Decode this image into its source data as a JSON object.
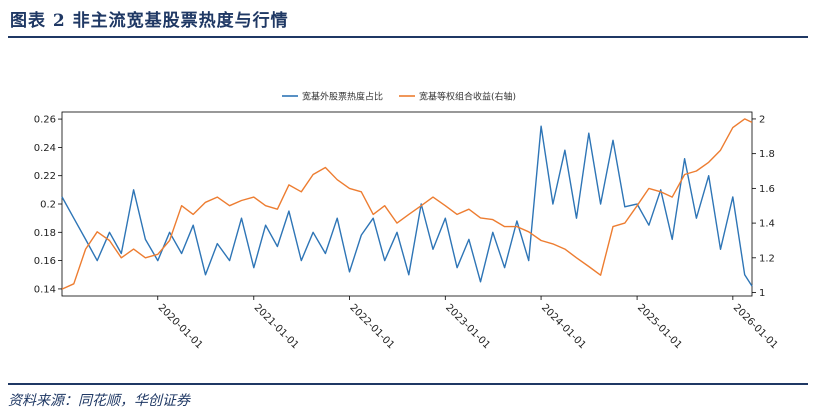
{
  "header": {
    "title": "图表 2   非主流宽基股票热度与行情"
  },
  "footer": {
    "source": "资料来源：同花顺，华创证券"
  },
  "chart_data": {
    "type": "line",
    "title": "",
    "legend_position": "top-center",
    "grid": false,
    "x_ticks": [
      "2020-01-01",
      "2021-01-01",
      "2022-01-01",
      "2023-01-01",
      "2024-01-01",
      "2025-01-01",
      "2026-01-01"
    ],
    "xlim": [
      "2019-01-01",
      "2026-03-15"
    ],
    "y_left": {
      "ticks": [
        "0.14",
        "0.16",
        "0.18",
        "0.2",
        "0.22",
        "0.24",
        "0.26"
      ],
      "ylim": [
        0.135,
        0.265
      ]
    },
    "y_right": {
      "ticks": [
        "1",
        "1.2",
        "1.4",
        "1.6",
        "1.8",
        "2"
      ],
      "ylim": [
        0.98,
        2.04
      ]
    },
    "series": [
      {
        "name": "宽基外股票热度占比",
        "axis": "left",
        "color": "#2e75b6",
        "x": [
          "2019-01-01",
          "2019-02-15",
          "2019-04-01",
          "2019-05-15",
          "2019-07-01",
          "2019-08-15",
          "2019-10-01",
          "2019-11-15",
          "2020-01-01",
          "2020-02-15",
          "2020-04-01",
          "2020-05-15",
          "2020-07-01",
          "2020-08-15",
          "2020-10-01",
          "2020-11-15",
          "2021-01-01",
          "2021-02-15",
          "2021-04-01",
          "2021-05-15",
          "2021-07-01",
          "2021-08-15",
          "2021-10-01",
          "2021-11-15",
          "2022-01-01",
          "2022-02-15",
          "2022-04-01",
          "2022-05-15",
          "2022-07-01",
          "2022-08-15",
          "2022-10-01",
          "2022-11-15",
          "2023-01-01",
          "2023-02-15",
          "2023-04-01",
          "2023-05-15",
          "2023-07-01",
          "2023-08-15",
          "2023-10-01",
          "2023-11-15",
          "2024-01-01",
          "2024-02-15",
          "2024-04-01",
          "2024-05-15",
          "2024-07-01",
          "2024-08-15",
          "2024-10-01",
          "2024-11-15",
          "2025-01-01",
          "2025-02-15",
          "2025-04-01",
          "2025-05-15",
          "2025-07-01",
          "2025-08-15",
          "2025-10-01",
          "2025-11-15",
          "2026-01-01",
          "2026-02-15",
          "2026-03-15"
        ],
        "values": [
          0.205,
          0.19,
          0.175,
          0.16,
          0.18,
          0.165,
          0.21,
          0.175,
          0.16,
          0.18,
          0.165,
          0.185,
          0.15,
          0.172,
          0.16,
          0.19,
          0.155,
          0.185,
          0.17,
          0.195,
          0.16,
          0.18,
          0.165,
          0.19,
          0.152,
          0.178,
          0.19,
          0.16,
          0.18,
          0.15,
          0.2,
          0.168,
          0.19,
          0.155,
          0.175,
          0.145,
          0.18,
          0.155,
          0.188,
          0.16,
          0.255,
          0.2,
          0.238,
          0.19,
          0.25,
          0.2,
          0.245,
          0.198,
          0.2,
          0.185,
          0.21,
          0.175,
          0.232,
          0.19,
          0.22,
          0.168,
          0.205,
          0.15,
          0.142
        ]
      },
      {
        "name": "宽基等权组合收益(右轴)",
        "axis": "right",
        "color": "#ed7d31",
        "x": [
          "2019-01-01",
          "2019-02-15",
          "2019-04-01",
          "2019-05-15",
          "2019-07-01",
          "2019-08-15",
          "2019-10-01",
          "2019-11-15",
          "2020-01-01",
          "2020-02-15",
          "2020-04-01",
          "2020-05-15",
          "2020-07-01",
          "2020-08-15",
          "2020-10-01",
          "2020-11-15",
          "2021-01-01",
          "2021-02-15",
          "2021-04-01",
          "2021-05-15",
          "2021-07-01",
          "2021-08-15",
          "2021-10-01",
          "2021-11-15",
          "2022-01-01",
          "2022-02-15",
          "2022-04-01",
          "2022-05-15",
          "2022-07-01",
          "2022-08-15",
          "2022-10-01",
          "2022-11-15",
          "2023-01-01",
          "2023-02-15",
          "2023-04-01",
          "2023-05-15",
          "2023-07-01",
          "2023-08-15",
          "2023-10-01",
          "2023-11-15",
          "2024-01-01",
          "2024-02-15",
          "2024-04-01",
          "2024-05-15",
          "2024-07-01",
          "2024-08-15",
          "2024-10-01",
          "2024-11-15",
          "2025-01-01",
          "2025-02-15",
          "2025-04-01",
          "2025-05-15",
          "2025-07-01",
          "2025-08-15",
          "2025-10-01",
          "2025-11-15",
          "2026-01-01",
          "2026-02-15",
          "2026-03-15"
        ],
        "values": [
          1.02,
          1.05,
          1.25,
          1.35,
          1.3,
          1.2,
          1.25,
          1.2,
          1.22,
          1.3,
          1.5,
          1.45,
          1.52,
          1.55,
          1.5,
          1.53,
          1.55,
          1.5,
          1.48,
          1.62,
          1.58,
          1.68,
          1.72,
          1.65,
          1.6,
          1.58,
          1.45,
          1.5,
          1.4,
          1.45,
          1.5,
          1.55,
          1.5,
          1.45,
          1.48,
          1.43,
          1.42,
          1.38,
          1.38,
          1.35,
          1.3,
          1.28,
          1.25,
          1.2,
          1.15,
          1.1,
          1.38,
          1.4,
          1.5,
          1.6,
          1.58,
          1.55,
          1.68,
          1.7,
          1.75,
          1.82,
          1.95,
          2.0,
          1.98
        ]
      }
    ]
  }
}
